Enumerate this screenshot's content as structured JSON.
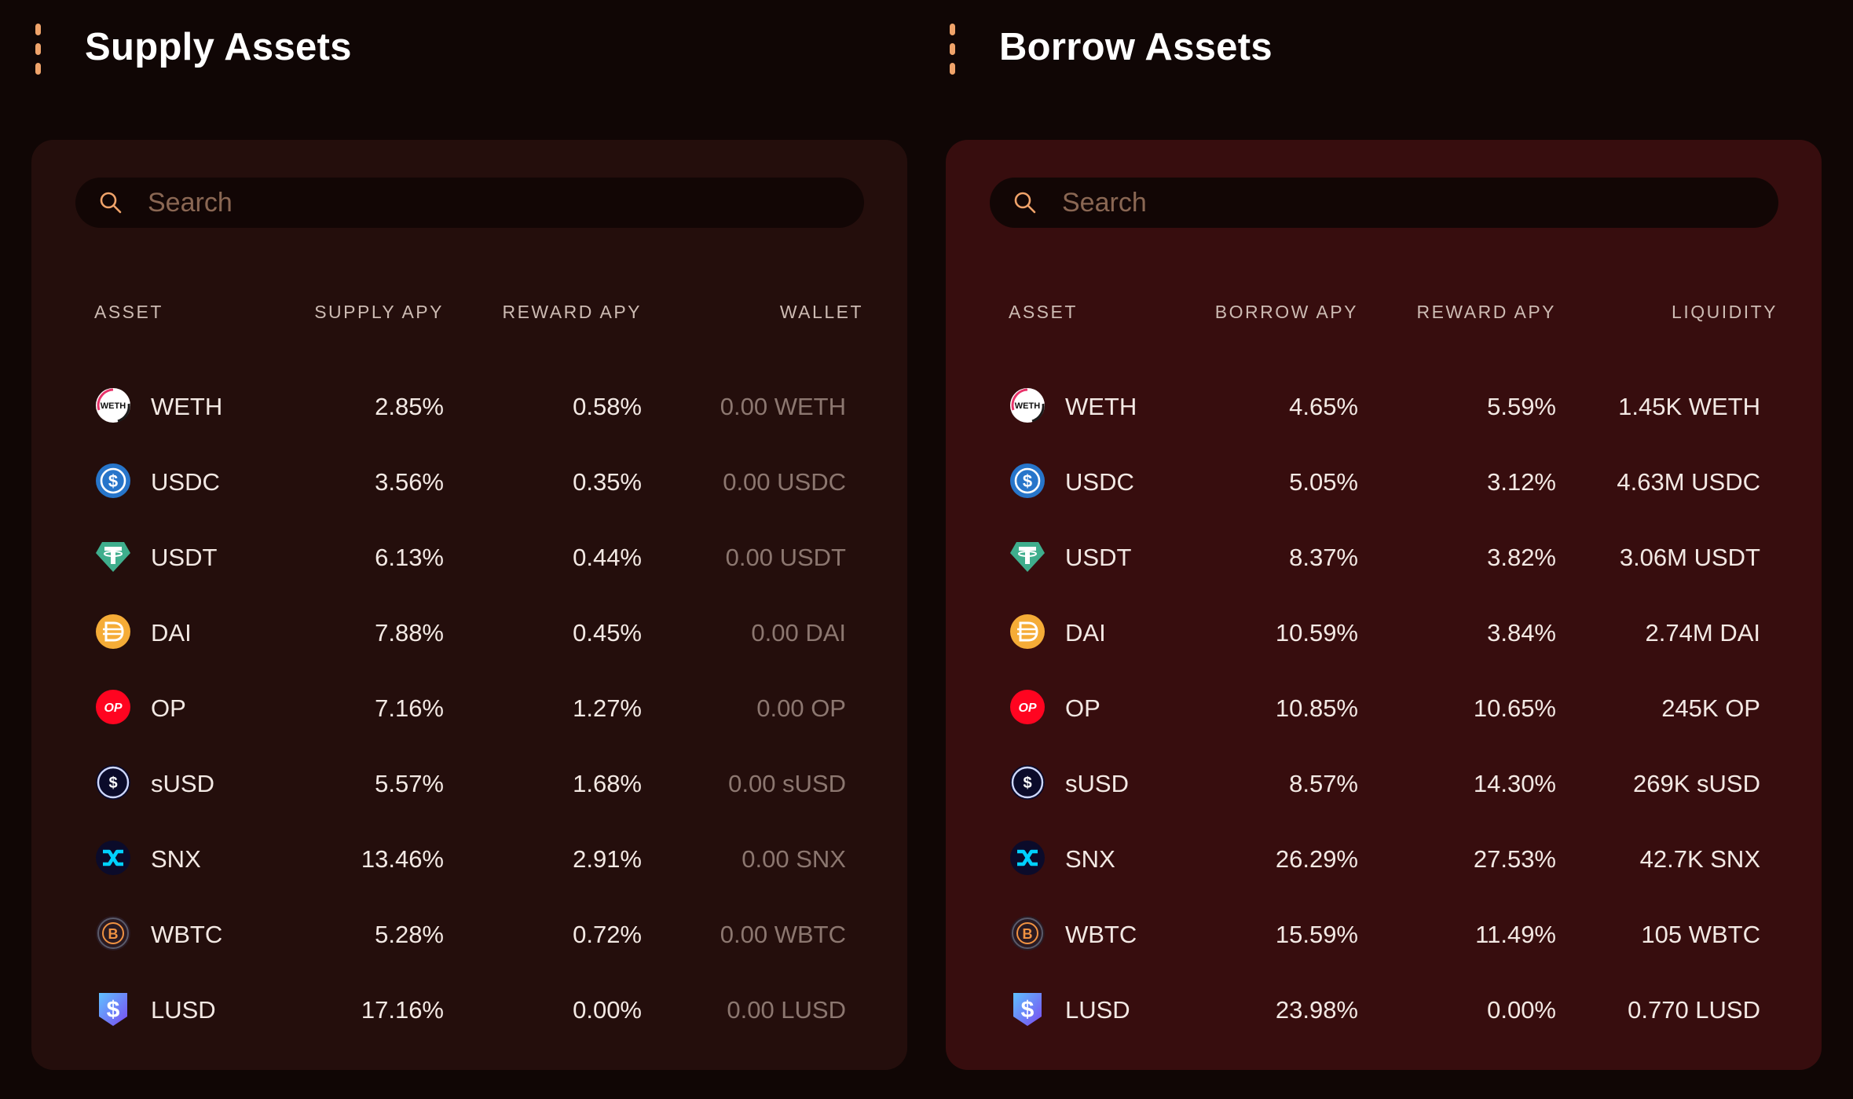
{
  "supply": {
    "title": "Supply Assets",
    "search_placeholder": "Search",
    "headers": {
      "asset": "ASSET",
      "apy": "SUPPLY APY",
      "reward": "REWARD APY",
      "last": "WALLET"
    },
    "rows": [
      {
        "asset": "WETH",
        "icon": "weth-icon",
        "apy": "2.85%",
        "reward": "0.58%",
        "value": "0.00 WETH"
      },
      {
        "asset": "USDC",
        "icon": "usdc-icon",
        "apy": "3.56%",
        "reward": "0.35%",
        "value": "0.00 USDC"
      },
      {
        "asset": "USDT",
        "icon": "usdt-icon",
        "apy": "6.13%",
        "reward": "0.44%",
        "value": "0.00 USDT"
      },
      {
        "asset": "DAI",
        "icon": "dai-icon",
        "apy": "7.88%",
        "reward": "0.45%",
        "value": "0.00 DAI"
      },
      {
        "asset": "OP",
        "icon": "op-icon",
        "apy": "7.16%",
        "reward": "1.27%",
        "value": "0.00 OP"
      },
      {
        "asset": "sUSD",
        "icon": "susd-icon",
        "apy": "5.57%",
        "reward": "1.68%",
        "value": "0.00 sUSD"
      },
      {
        "asset": "SNX",
        "icon": "snx-icon",
        "apy": "13.46%",
        "reward": "2.91%",
        "value": "0.00 SNX"
      },
      {
        "asset": "WBTC",
        "icon": "wbtc-icon",
        "apy": "5.28%",
        "reward": "0.72%",
        "value": "0.00 WBTC"
      },
      {
        "asset": "LUSD",
        "icon": "lusd-icon",
        "apy": "17.16%",
        "reward": "0.00%",
        "value": "0.00 LUSD"
      }
    ]
  },
  "borrow": {
    "title": "Borrow Assets",
    "search_placeholder": "Search",
    "headers": {
      "asset": "ASSET",
      "apy": "BORROW APY",
      "reward": "REWARD APY",
      "last": "LIQUIDITY"
    },
    "rows": [
      {
        "asset": "WETH",
        "icon": "weth-icon",
        "apy": "4.65%",
        "reward": "5.59%",
        "value": "1.45K WETH"
      },
      {
        "asset": "USDC",
        "icon": "usdc-icon",
        "apy": "5.05%",
        "reward": "3.12%",
        "value": "4.63M USDC"
      },
      {
        "asset": "USDT",
        "icon": "usdt-icon",
        "apy": "8.37%",
        "reward": "3.82%",
        "value": "3.06M USDT"
      },
      {
        "asset": "DAI",
        "icon": "dai-icon",
        "apy": "10.59%",
        "reward": "3.84%",
        "value": "2.74M DAI"
      },
      {
        "asset": "OP",
        "icon": "op-icon",
        "apy": "10.85%",
        "reward": "10.65%",
        "value": "245K OP"
      },
      {
        "asset": "sUSD",
        "icon": "susd-icon",
        "apy": "8.57%",
        "reward": "14.30%",
        "value": "269K sUSD"
      },
      {
        "asset": "SNX",
        "icon": "snx-icon",
        "apy": "26.29%",
        "reward": "27.53%",
        "value": "42.7K SNX"
      },
      {
        "asset": "WBTC",
        "icon": "wbtc-icon",
        "apy": "15.59%",
        "reward": "11.49%",
        "value": "105 WBTC"
      },
      {
        "asset": "LUSD",
        "icon": "lusd-icon",
        "apy": "23.98%",
        "reward": "0.00%",
        "value": "0.770 LUSD"
      }
    ]
  },
  "colors": {
    "background": "#100605",
    "supply_panel": "#240e0c",
    "borrow_panel": "#370d0e",
    "accent": "#f0a36a"
  }
}
